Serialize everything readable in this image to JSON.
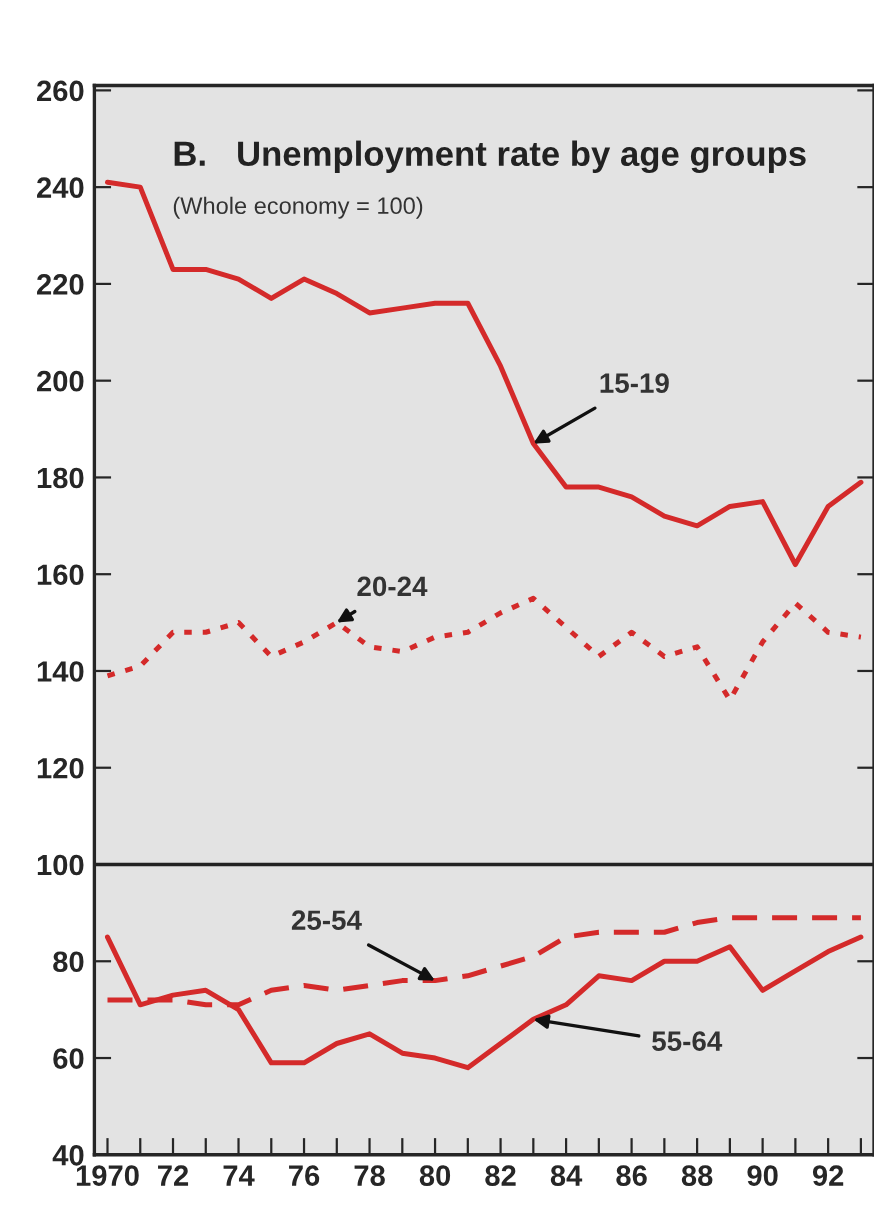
{
  "chart_data": {
    "type": "line",
    "title": "B.   Unemployment rate by age groups",
    "subtitle": "(Whole economy = 100)",
    "x": [
      1970,
      1971,
      1972,
      1973,
      1974,
      1975,
      1976,
      1977,
      1978,
      1979,
      1980,
      1981,
      1982,
      1983,
      1984,
      1985,
      1986,
      1987,
      1988,
      1989,
      1990,
      1991,
      1992,
      1993
    ],
    "series": [
      {
        "name": "15-19",
        "color": "#d42a2a",
        "line_style": "solid",
        "values": [
          241,
          240,
          223,
          223,
          221,
          217,
          221,
          218,
          214,
          215,
          216,
          216,
          203,
          187,
          178,
          178,
          176,
          172,
          170,
          174,
          175,
          162,
          174,
          179
        ]
      },
      {
        "name": "20-24",
        "color": "#d42a2a",
        "line_style": "dotted",
        "values": [
          139,
          141,
          148,
          148,
          150,
          143,
          146,
          150,
          145,
          144,
          147,
          148,
          152,
          155,
          149,
          143,
          148,
          143,
          145,
          134,
          146,
          154,
          148,
          147
        ]
      },
      {
        "name": "25-54",
        "color": "#d42a2a",
        "line_style": "dashed",
        "values": [
          72,
          72,
          72,
          71,
          71,
          74,
          75,
          74,
          75,
          76,
          76,
          77,
          79,
          81,
          85,
          86,
          86,
          86,
          88,
          89,
          89,
          89,
          89,
          89
        ]
      },
      {
        "name": "55-64",
        "color": "#d42a2a",
        "line_style": "solid",
        "values": [
          85,
          71,
          73,
          74,
          70,
          59,
          59,
          63,
          65,
          61,
          60,
          58,
          63,
          68,
          71,
          77,
          76,
          80,
          80,
          83,
          74,
          78,
          82,
          85
        ]
      }
    ],
    "ref_lines": [
      {
        "axis": "y",
        "value": 100,
        "color": "#222222",
        "line_style": "solid"
      }
    ],
    "xlim": [
      1969.6,
      1993.4
    ],
    "ylim": [
      40,
      261
    ],
    "xticks": [
      {
        "value": 1970,
        "label": "1970"
      },
      {
        "value": 1971,
        "label": null
      },
      {
        "value": 1972,
        "label": "72"
      },
      {
        "value": 1973,
        "label": null
      },
      {
        "value": 1974,
        "label": "74"
      },
      {
        "value": 1975,
        "label": null
      },
      {
        "value": 1976,
        "label": "76"
      },
      {
        "value": 1977,
        "label": null
      },
      {
        "value": 1978,
        "label": "78"
      },
      {
        "value": 1979,
        "label": null
      },
      {
        "value": 1980,
        "label": "80"
      },
      {
        "value": 1981,
        "label": null
      },
      {
        "value": 1982,
        "label": "82"
      },
      {
        "value": 1983,
        "label": null
      },
      {
        "value": 1984,
        "label": "84"
      },
      {
        "value": 1985,
        "label": null
      },
      {
        "value": 1986,
        "label": "86"
      },
      {
        "value": 1987,
        "label": null
      },
      {
        "value": 1988,
        "label": "88"
      },
      {
        "value": 1989,
        "label": null
      },
      {
        "value": 1990,
        "label": "90"
      },
      {
        "value": 1991,
        "label": null
      },
      {
        "value": 1992,
        "label": "92"
      },
      {
        "value": 1993,
        "label": null
      }
    ],
    "yticks": [
      40,
      60,
      80,
      100,
      120,
      140,
      160,
      180,
      200,
      220,
      240,
      260
    ],
    "grid": false,
    "legend": false,
    "marker": "none"
  }
}
